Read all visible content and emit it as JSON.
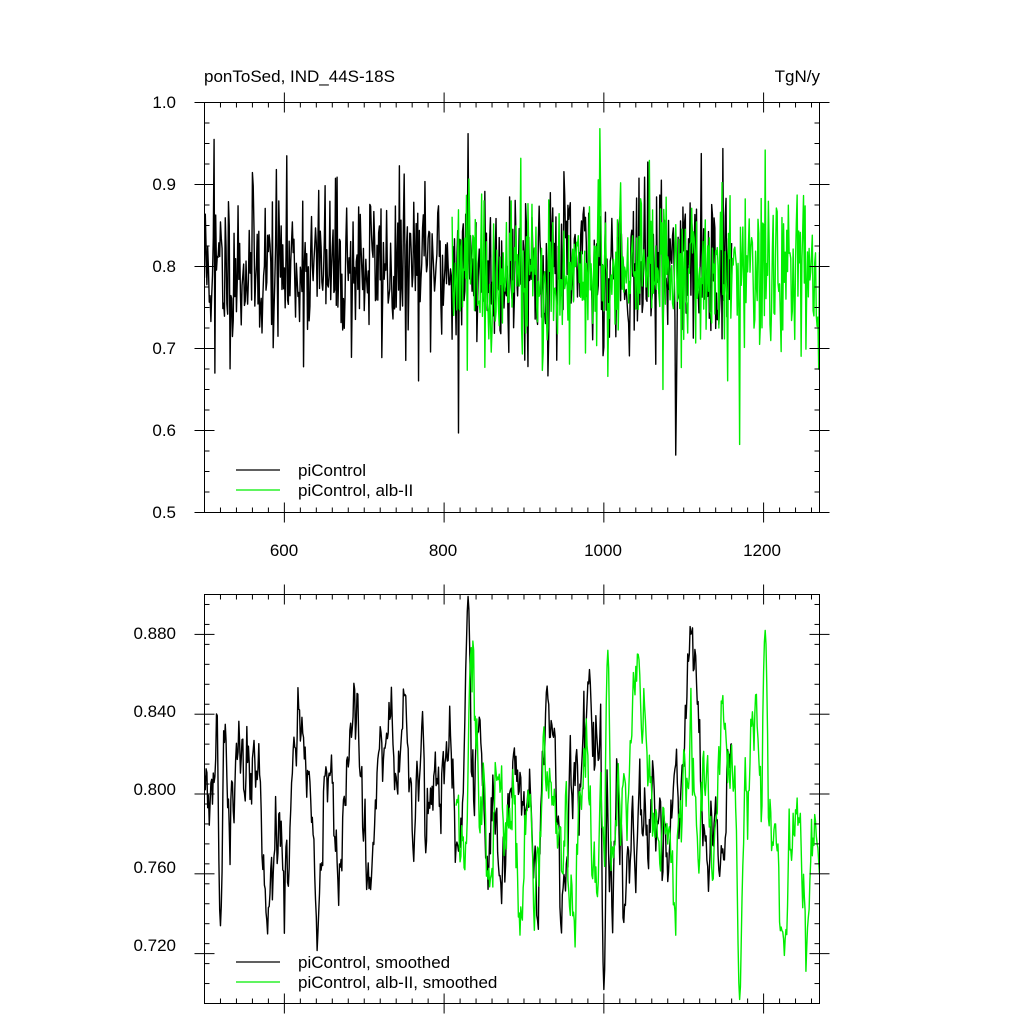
{
  "chart_data": [
    {
      "type": "line",
      "title": "ponToSed, IND_44S-18S",
      "units": "TgN/y",
      "xlabel": "",
      "ylabel": "",
      "xlim": [
        500,
        1270
      ],
      "ylim": [
        0.5,
        1.0
      ],
      "x_ticks": [
        "600",
        "800",
        "1000",
        "1200"
      ],
      "y_ticks": [
        "0.5",
        "0.6",
        "0.7",
        "0.8",
        "0.9",
        "1.0"
      ],
      "legend_position": "bottom-left",
      "series": [
        {
          "name": "piControl",
          "color": "#000000",
          "x_start": 500,
          "x_end": 1160,
          "approx_mean": 0.8,
          "approx_sd": 0.055,
          "extrema": [
            {
              "x": 512,
              "y": 0.955
            },
            {
              "x": 513,
              "y": 0.67
            },
            {
              "x": 830,
              "y": 0.962
            },
            {
              "x": 818,
              "y": 0.597
            },
            {
              "x": 1090,
              "y": 0.57
            }
          ]
        },
        {
          "name": "piControl, alb-II",
          "color": "#00ee00",
          "x_start": 810,
          "x_end": 1270,
          "approx_mean": 0.79,
          "approx_sd": 0.055,
          "extrema": [
            {
              "x": 995,
              "y": 0.968
            },
            {
              "x": 1170,
              "y": 0.583
            },
            {
              "x": 1202,
              "y": 0.942
            }
          ]
        }
      ]
    },
    {
      "type": "line",
      "title": "",
      "xlabel": "",
      "ylabel": "",
      "xlim": [
        500,
        1270
      ],
      "ylim": [
        0.695,
        0.9
      ],
      "y_ticks": [
        "0.720",
        "0.760",
        "0.800",
        "0.840",
        "0.880"
      ],
      "legend_position": "bottom-left",
      "series": [
        {
          "name": "piControl, smoothed",
          "color": "#000000",
          "x_start": 500,
          "x_end": 1160,
          "approx_mean": 0.8,
          "approx_sd": 0.03,
          "extrema": [
            {
              "x": 830,
              "y": 0.899
            },
            {
              "x": 1000,
              "y": 0.702
            },
            {
              "x": 520,
              "y": 0.734
            }
          ]
        },
        {
          "name": "piControl, alb-II, smoothed",
          "color": "#00ee00",
          "x_start": 815,
          "x_end": 1270,
          "approx_mean": 0.79,
          "approx_sd": 0.03,
          "extrema": [
            {
              "x": 1005,
              "y": 0.872
            },
            {
              "x": 1202,
              "y": 0.882
            },
            {
              "x": 1170,
              "y": 0.697
            }
          ]
        }
      ]
    }
  ]
}
